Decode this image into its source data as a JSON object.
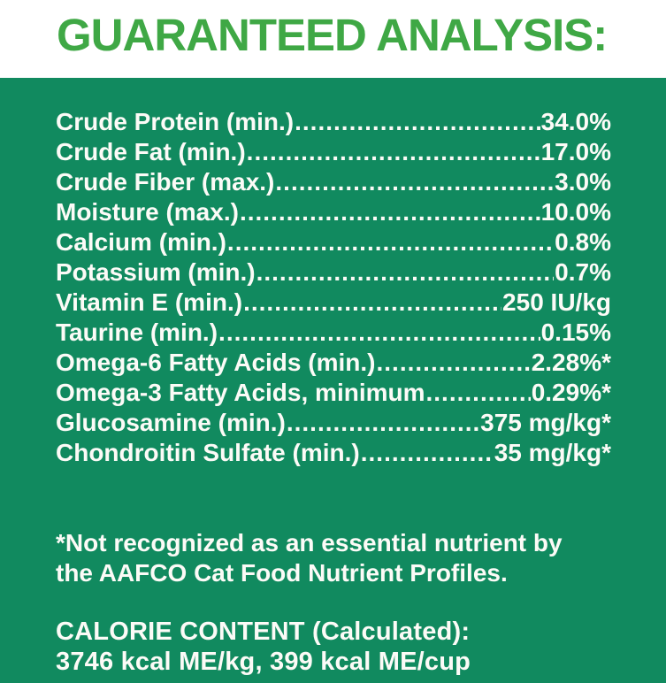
{
  "colors": {
    "panel_green": "#118a5f",
    "title_green": "#3fa845",
    "text_white": "#fcfbf7"
  },
  "header": {
    "title": "GUARANTEED ANALYSIS:"
  },
  "rows": [
    {
      "label": "Crude Protein (min.)",
      "value": "34.0%"
    },
    {
      "label": "Crude Fat (min.)",
      "value": "17.0%"
    },
    {
      "label": "Crude Fiber (max.)",
      "value": "3.0%"
    },
    {
      "label": "Moisture (max.)",
      "value": "10.0%"
    },
    {
      "label": "Calcium (min.)",
      "value": "0.8%"
    },
    {
      "label": "Potassium (min.)",
      "value": "0.7%"
    },
    {
      "label": "Vitamin E (min.)",
      "value": "250 IU/kg"
    },
    {
      "label": "Taurine (min.)",
      "value": "0.15%"
    },
    {
      "label": "Omega-6 Fatty Acids (min.)",
      "value": "2.28%*"
    },
    {
      "label": "Omega-3 Fatty Acids, minimum",
      "value": "0.29%*"
    },
    {
      "label": "Glucosamine (min.)",
      "value": "375 mg/kg*"
    },
    {
      "label": "Chondroitin Sulfate (min.)",
      "value": "35 mg/kg*"
    }
  ],
  "footnote": {
    "lines": [
      "*Not recognized as an essential nutrient by",
      "the AAFCO Cat Food Nutrient Profiles."
    ]
  },
  "calorie": {
    "heading": "CALORIE CONTENT (Calculated):",
    "values": "3746 kcal ME/kg, 399 kcal ME/cup"
  }
}
